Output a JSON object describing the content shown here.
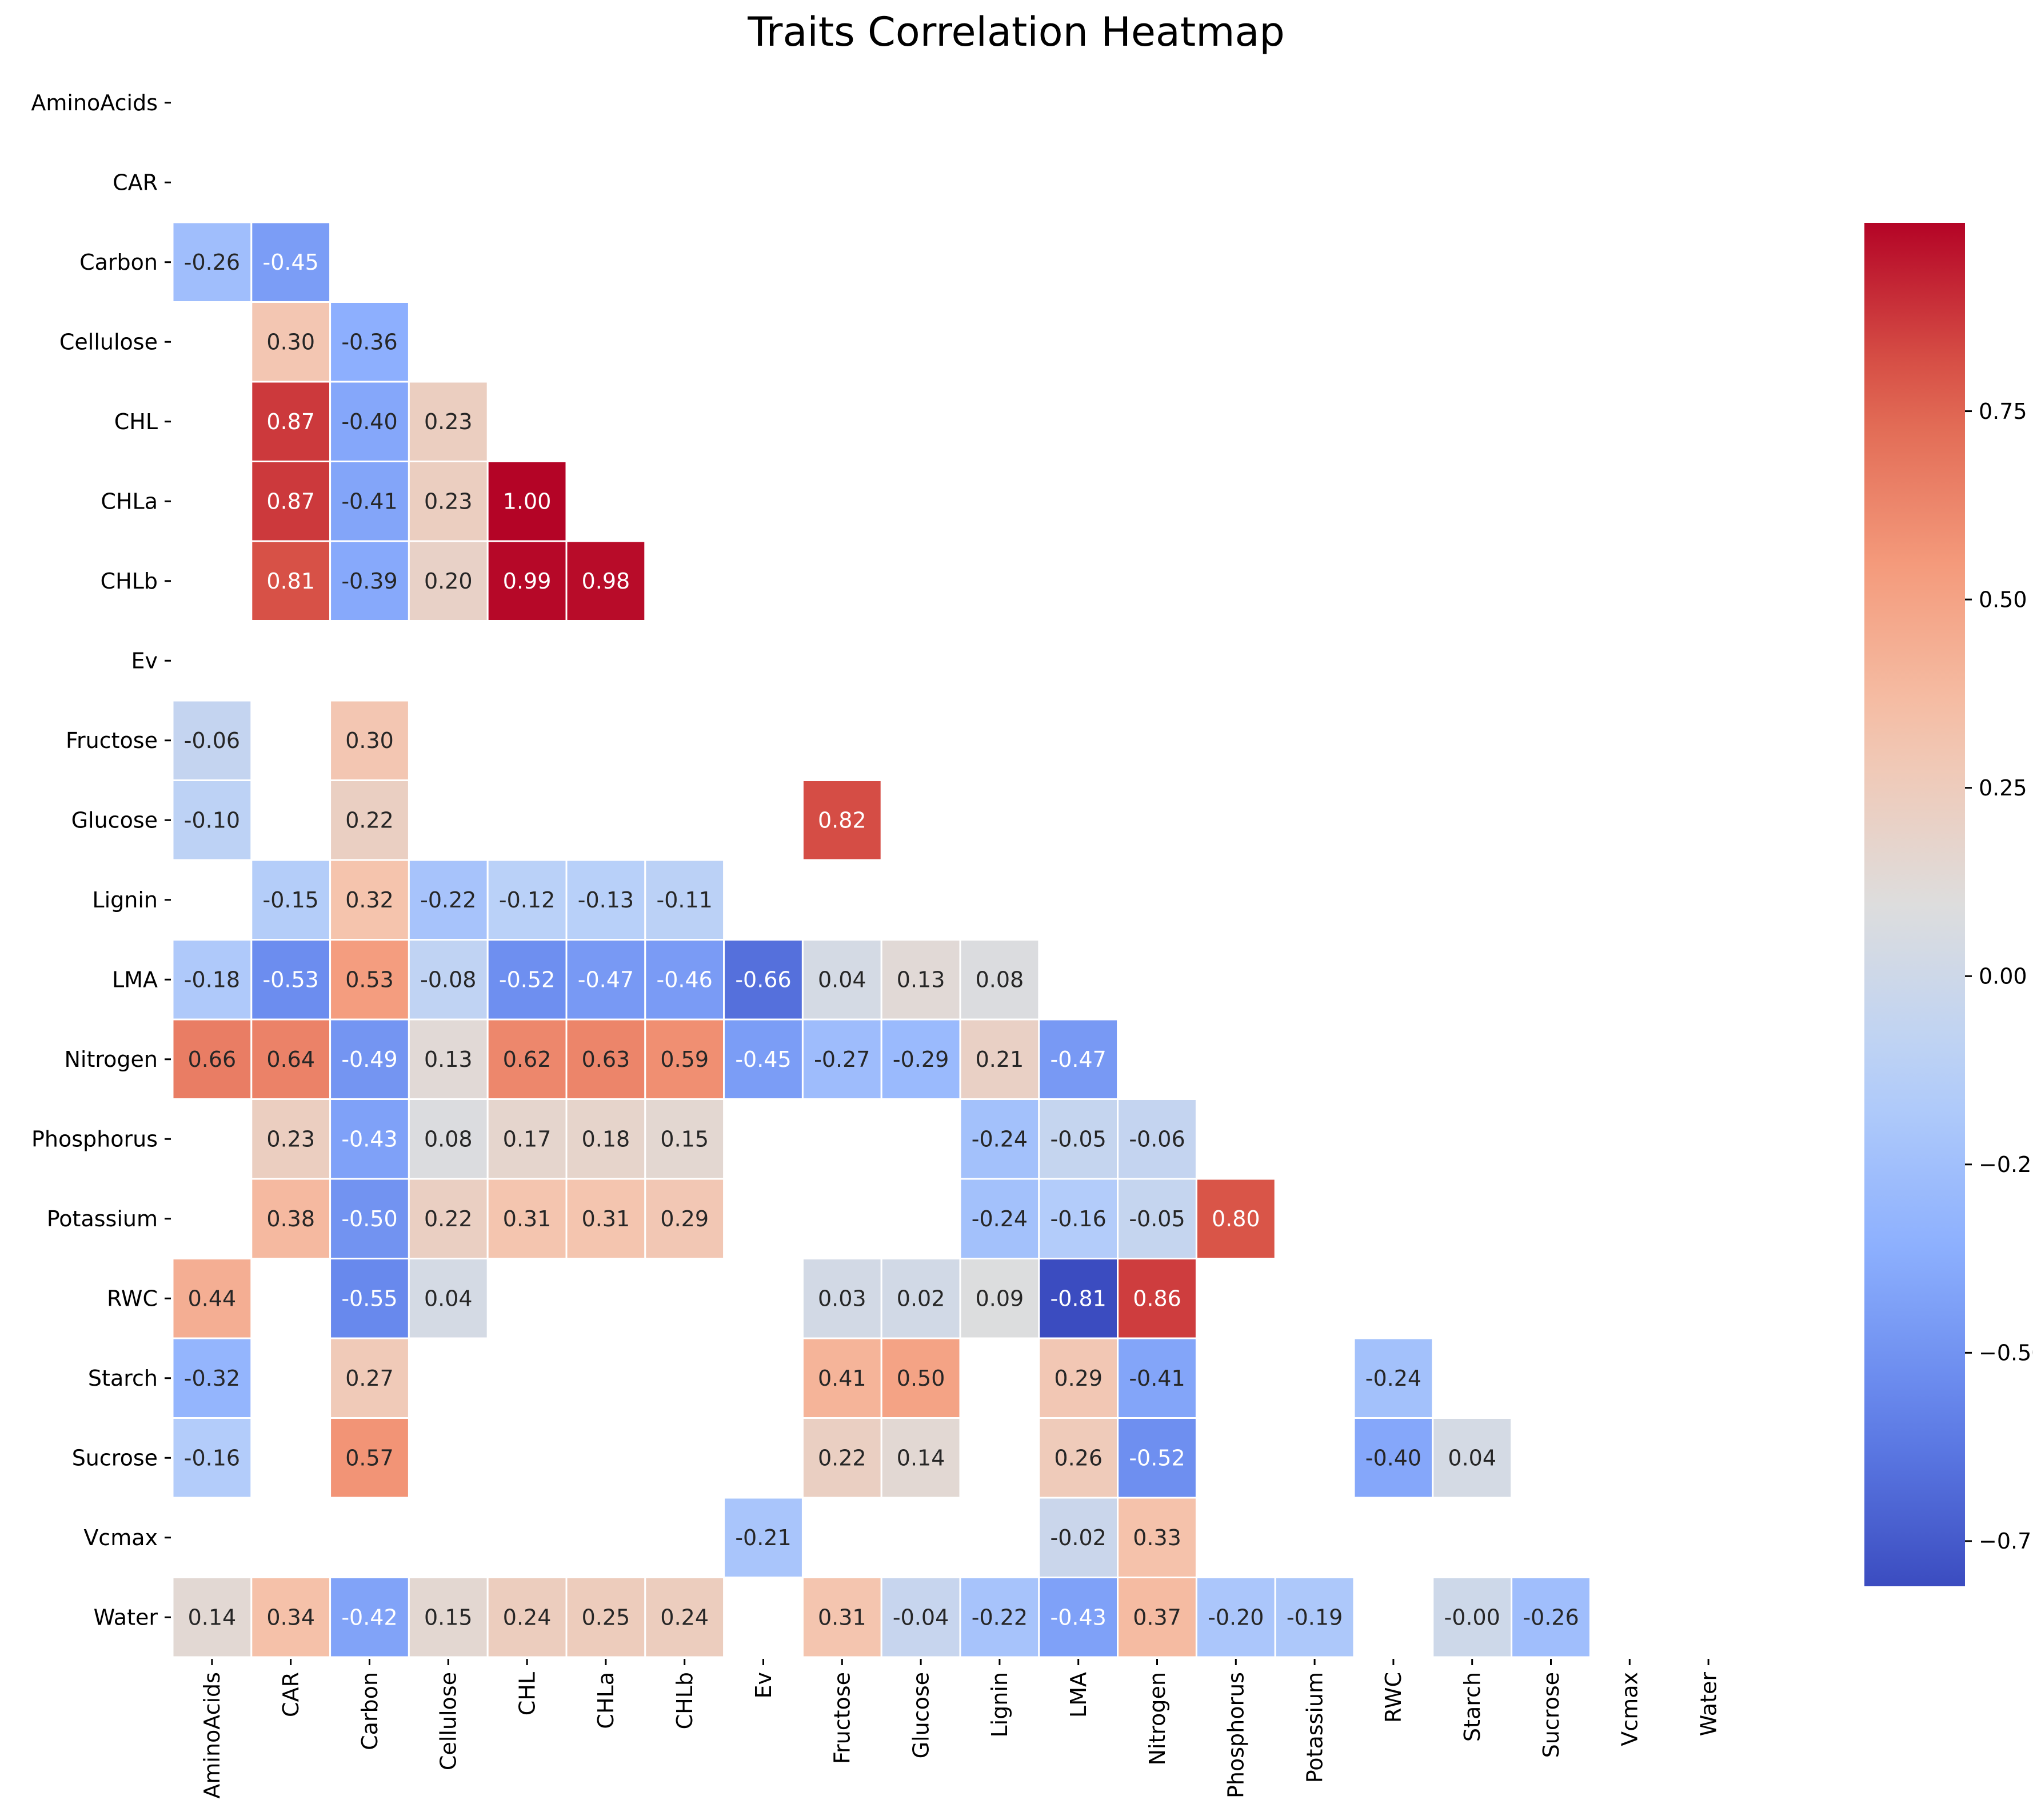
{
  "chart_data": {
    "type": "heatmap",
    "title": "Traits Correlation Heatmap",
    "xlabel": "",
    "ylabel": "",
    "categories": [
      "AminoAcids",
      "CAR",
      "Carbon",
      "Cellulose",
      "CHL",
      "CHLa",
      "CHLb",
      "Ev",
      "Fructose",
      "Glucose",
      "Lignin",
      "LMA",
      "Nitrogen",
      "Phosphorus",
      "Potassium",
      "RWC",
      "Starch",
      "Sucrose",
      "Vcmax",
      "Water"
    ],
    "mask": "upper-triangle-and-diagonal; blank cells not shown",
    "colormap": "coolwarm",
    "vmin": -0.81,
    "vmax": 1.0,
    "colorbar_ticks": [
      -0.75,
      -0.5,
      -0.25,
      0.0,
      0.25,
      0.5,
      0.75
    ],
    "colorbar_tick_labels": [
      "−0.75",
      "−0.50",
      "−0.25",
      "0.00",
      "0.25",
      "0.50",
      "0.75"
    ],
    "grid": false,
    "colorbar_position": "right",
    "cells": [
      {
        "row": "Carbon",
        "col": "AminoAcids",
        "value": -0.26,
        "label": "-0.26"
      },
      {
        "row": "Carbon",
        "col": "CAR",
        "value": -0.45,
        "label": "-0.45"
      },
      {
        "row": "Cellulose",
        "col": "CAR",
        "value": 0.3,
        "label": "0.30"
      },
      {
        "row": "Cellulose",
        "col": "Carbon",
        "value": -0.36,
        "label": "-0.36"
      },
      {
        "row": "CHL",
        "col": "CAR",
        "value": 0.87,
        "label": "0.87"
      },
      {
        "row": "CHL",
        "col": "Carbon",
        "value": -0.4,
        "label": "-0.40"
      },
      {
        "row": "CHL",
        "col": "Cellulose",
        "value": 0.23,
        "label": "0.23"
      },
      {
        "row": "CHLa",
        "col": "CAR",
        "value": 0.87,
        "label": "0.87"
      },
      {
        "row": "CHLa",
        "col": "Carbon",
        "value": -0.41,
        "label": "-0.41"
      },
      {
        "row": "CHLa",
        "col": "Cellulose",
        "value": 0.23,
        "label": "0.23"
      },
      {
        "row": "CHLa",
        "col": "CHL",
        "value": 1.0,
        "label": "1.00"
      },
      {
        "row": "CHLb",
        "col": "CAR",
        "value": 0.81,
        "label": "0.81"
      },
      {
        "row": "CHLb",
        "col": "Carbon",
        "value": -0.39,
        "label": "-0.39"
      },
      {
        "row": "CHLb",
        "col": "Cellulose",
        "value": 0.2,
        "label": "0.20"
      },
      {
        "row": "CHLb",
        "col": "CHL",
        "value": 0.99,
        "label": "0.99"
      },
      {
        "row": "CHLb",
        "col": "CHLa",
        "value": 0.98,
        "label": "0.98"
      },
      {
        "row": "Fructose",
        "col": "AminoAcids",
        "value": -0.06,
        "label": "-0.06"
      },
      {
        "row": "Fructose",
        "col": "Carbon",
        "value": 0.3,
        "label": "0.30"
      },
      {
        "row": "Glucose",
        "col": "AminoAcids",
        "value": -0.1,
        "label": "-0.10"
      },
      {
        "row": "Glucose",
        "col": "Carbon",
        "value": 0.22,
        "label": "0.22"
      },
      {
        "row": "Glucose",
        "col": "Fructose",
        "value": 0.82,
        "label": "0.82"
      },
      {
        "row": "Lignin",
        "col": "CAR",
        "value": -0.15,
        "label": "-0.15"
      },
      {
        "row": "Lignin",
        "col": "Carbon",
        "value": 0.32,
        "label": "0.32"
      },
      {
        "row": "Lignin",
        "col": "Cellulose",
        "value": -0.22,
        "label": "-0.22"
      },
      {
        "row": "Lignin",
        "col": "CHL",
        "value": -0.12,
        "label": "-0.12"
      },
      {
        "row": "Lignin",
        "col": "CHLa",
        "value": -0.13,
        "label": "-0.13"
      },
      {
        "row": "Lignin",
        "col": "CHLb",
        "value": -0.11,
        "label": "-0.11"
      },
      {
        "row": "LMA",
        "col": "AminoAcids",
        "value": -0.18,
        "label": "-0.18"
      },
      {
        "row": "LMA",
        "col": "CAR",
        "value": -0.53,
        "label": "-0.53"
      },
      {
        "row": "LMA",
        "col": "Carbon",
        "value": 0.53,
        "label": "0.53"
      },
      {
        "row": "LMA",
        "col": "Cellulose",
        "value": -0.08,
        "label": "-0.08"
      },
      {
        "row": "LMA",
        "col": "CHL",
        "value": -0.52,
        "label": "-0.52"
      },
      {
        "row": "LMA",
        "col": "CHLa",
        "value": -0.47,
        "label": "-0.47"
      },
      {
        "row": "LMA",
        "col": "CHLb",
        "value": -0.46,
        "label": "-0.46"
      },
      {
        "row": "LMA",
        "col": "Ev",
        "value": -0.66,
        "label": "-0.66"
      },
      {
        "row": "LMA",
        "col": "Fructose",
        "value": 0.04,
        "label": "0.04"
      },
      {
        "row": "LMA",
        "col": "Glucose",
        "value": 0.13,
        "label": "0.13"
      },
      {
        "row": "LMA",
        "col": "Lignin",
        "value": 0.08,
        "label": "0.08"
      },
      {
        "row": "Nitrogen",
        "col": "AminoAcids",
        "value": 0.66,
        "label": "0.66"
      },
      {
        "row": "Nitrogen",
        "col": "CAR",
        "value": 0.64,
        "label": "0.64"
      },
      {
        "row": "Nitrogen",
        "col": "Carbon",
        "value": -0.49,
        "label": "-0.49"
      },
      {
        "row": "Nitrogen",
        "col": "Cellulose",
        "value": 0.13,
        "label": "0.13"
      },
      {
        "row": "Nitrogen",
        "col": "CHL",
        "value": 0.62,
        "label": "0.62"
      },
      {
        "row": "Nitrogen",
        "col": "CHLa",
        "value": 0.63,
        "label": "0.63"
      },
      {
        "row": "Nitrogen",
        "col": "CHLb",
        "value": 0.59,
        "label": "0.59"
      },
      {
        "row": "Nitrogen",
        "col": "Ev",
        "value": -0.45,
        "label": "-0.45"
      },
      {
        "row": "Nitrogen",
        "col": "Fructose",
        "value": -0.27,
        "label": "-0.27"
      },
      {
        "row": "Nitrogen",
        "col": "Glucose",
        "value": -0.29,
        "label": "-0.29"
      },
      {
        "row": "Nitrogen",
        "col": "Lignin",
        "value": 0.21,
        "label": "0.21"
      },
      {
        "row": "Nitrogen",
        "col": "LMA",
        "value": -0.47,
        "label": "-0.47"
      },
      {
        "row": "Phosphorus",
        "col": "CAR",
        "value": 0.23,
        "label": "0.23"
      },
      {
        "row": "Phosphorus",
        "col": "Carbon",
        "value": -0.43,
        "label": "-0.43"
      },
      {
        "row": "Phosphorus",
        "col": "Cellulose",
        "value": 0.08,
        "label": "0.08"
      },
      {
        "row": "Phosphorus",
        "col": "CHL",
        "value": 0.17,
        "label": "0.17"
      },
      {
        "row": "Phosphorus",
        "col": "CHLa",
        "value": 0.18,
        "label": "0.18"
      },
      {
        "row": "Phosphorus",
        "col": "CHLb",
        "value": 0.15,
        "label": "0.15"
      },
      {
        "row": "Phosphorus",
        "col": "Lignin",
        "value": -0.24,
        "label": "-0.24"
      },
      {
        "row": "Phosphorus",
        "col": "LMA",
        "value": -0.05,
        "label": "-0.05"
      },
      {
        "row": "Phosphorus",
        "col": "Nitrogen",
        "value": -0.06,
        "label": "-0.06"
      },
      {
        "row": "Potassium",
        "col": "CAR",
        "value": 0.38,
        "label": "0.38"
      },
      {
        "row": "Potassium",
        "col": "Carbon",
        "value": -0.5,
        "label": "-0.50"
      },
      {
        "row": "Potassium",
        "col": "Cellulose",
        "value": 0.22,
        "label": "0.22"
      },
      {
        "row": "Potassium",
        "col": "CHL",
        "value": 0.31,
        "label": "0.31"
      },
      {
        "row": "Potassium",
        "col": "CHLa",
        "value": 0.31,
        "label": "0.31"
      },
      {
        "row": "Potassium",
        "col": "CHLb",
        "value": 0.29,
        "label": "0.29"
      },
      {
        "row": "Potassium",
        "col": "Lignin",
        "value": -0.24,
        "label": "-0.24"
      },
      {
        "row": "Potassium",
        "col": "LMA",
        "value": -0.16,
        "label": "-0.16"
      },
      {
        "row": "Potassium",
        "col": "Nitrogen",
        "value": -0.05,
        "label": "-0.05"
      },
      {
        "row": "Potassium",
        "col": "Phosphorus",
        "value": 0.8,
        "label": "0.80"
      },
      {
        "row": "RWC",
        "col": "AminoAcids",
        "value": 0.44,
        "label": "0.44"
      },
      {
        "row": "RWC",
        "col": "Carbon",
        "value": -0.55,
        "label": "-0.55"
      },
      {
        "row": "RWC",
        "col": "Cellulose",
        "value": 0.04,
        "label": "0.04"
      },
      {
        "row": "RWC",
        "col": "Fructose",
        "value": 0.03,
        "label": "0.03"
      },
      {
        "row": "RWC",
        "col": "Glucose",
        "value": 0.02,
        "label": "0.02"
      },
      {
        "row": "RWC",
        "col": "Lignin",
        "value": 0.09,
        "label": "0.09"
      },
      {
        "row": "RWC",
        "col": "LMA",
        "value": -0.81,
        "label": "-0.81"
      },
      {
        "row": "RWC",
        "col": "Nitrogen",
        "value": 0.86,
        "label": "0.86"
      },
      {
        "row": "Starch",
        "col": "AminoAcids",
        "value": -0.32,
        "label": "-0.32"
      },
      {
        "row": "Starch",
        "col": "Carbon",
        "value": 0.27,
        "label": "0.27"
      },
      {
        "row": "Starch",
        "col": "Fructose",
        "value": 0.41,
        "label": "0.41"
      },
      {
        "row": "Starch",
        "col": "Glucose",
        "value": 0.5,
        "label": "0.50"
      },
      {
        "row": "Starch",
        "col": "LMA",
        "value": 0.29,
        "label": "0.29"
      },
      {
        "row": "Starch",
        "col": "Nitrogen",
        "value": -0.41,
        "label": "-0.41"
      },
      {
        "row": "Starch",
        "col": "RWC",
        "value": -0.24,
        "label": "-0.24"
      },
      {
        "row": "Sucrose",
        "col": "AminoAcids",
        "value": -0.16,
        "label": "-0.16"
      },
      {
        "row": "Sucrose",
        "col": "Carbon",
        "value": 0.57,
        "label": "0.57"
      },
      {
        "row": "Sucrose",
        "col": "Fructose",
        "value": 0.22,
        "label": "0.22"
      },
      {
        "row": "Sucrose",
        "col": "Glucose",
        "value": 0.14,
        "label": "0.14"
      },
      {
        "row": "Sucrose",
        "col": "LMA",
        "value": 0.26,
        "label": "0.26"
      },
      {
        "row": "Sucrose",
        "col": "Nitrogen",
        "value": -0.52,
        "label": "-0.52"
      },
      {
        "row": "Sucrose",
        "col": "RWC",
        "value": -0.4,
        "label": "-0.40"
      },
      {
        "row": "Sucrose",
        "col": "Starch",
        "value": 0.04,
        "label": "0.04"
      },
      {
        "row": "Vcmax",
        "col": "Ev",
        "value": -0.21,
        "label": "-0.21"
      },
      {
        "row": "Vcmax",
        "col": "LMA",
        "value": -0.02,
        "label": "-0.02"
      },
      {
        "row": "Vcmax",
        "col": "Nitrogen",
        "value": 0.33,
        "label": "0.33"
      },
      {
        "row": "Water",
        "col": "AminoAcids",
        "value": 0.14,
        "label": "0.14"
      },
      {
        "row": "Water",
        "col": "CAR",
        "value": 0.34,
        "label": "0.34"
      },
      {
        "row": "Water",
        "col": "Carbon",
        "value": -0.42,
        "label": "-0.42"
      },
      {
        "row": "Water",
        "col": "Cellulose",
        "value": 0.15,
        "label": "0.15"
      },
      {
        "row": "Water",
        "col": "CHL",
        "value": 0.24,
        "label": "0.24"
      },
      {
        "row": "Water",
        "col": "CHLa",
        "value": 0.25,
        "label": "0.25"
      },
      {
        "row": "Water",
        "col": "CHLb",
        "value": 0.24,
        "label": "0.24"
      },
      {
        "row": "Water",
        "col": "Fructose",
        "value": 0.31,
        "label": "0.31"
      },
      {
        "row": "Water",
        "col": "Glucose",
        "value": -0.04,
        "label": "-0.04"
      },
      {
        "row": "Water",
        "col": "Lignin",
        "value": -0.22,
        "label": "-0.22"
      },
      {
        "row": "Water",
        "col": "LMA",
        "value": -0.43,
        "label": "-0.43"
      },
      {
        "row": "Water",
        "col": "Nitrogen",
        "value": 0.37,
        "label": "0.37"
      },
      {
        "row": "Water",
        "col": "Phosphorus",
        "value": -0.2,
        "label": "-0.20"
      },
      {
        "row": "Water",
        "col": "Potassium",
        "value": -0.19,
        "label": "-0.19"
      },
      {
        "row": "Water",
        "col": "Starch",
        "value": -0.0,
        "label": "-0.00"
      },
      {
        "row": "Water",
        "col": "Sucrose",
        "value": -0.26,
        "label": "-0.26"
      }
    ]
  }
}
